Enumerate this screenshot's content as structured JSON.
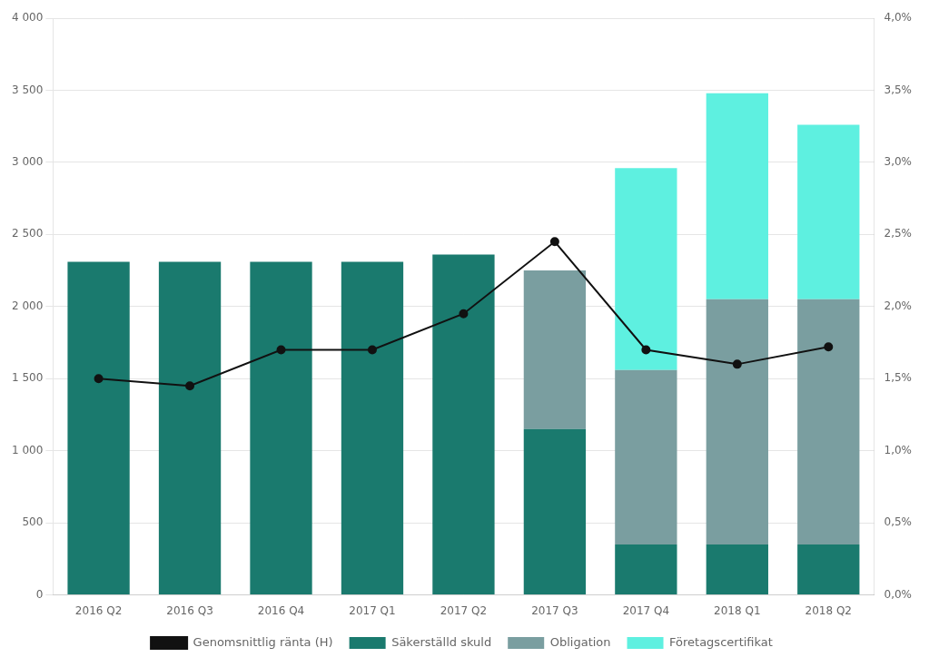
{
  "chart_data": {
    "type": "bar",
    "stacked": true,
    "categories": [
      "2016 Q2",
      "2016 Q3",
      "2016 Q4",
      "2017 Q1",
      "2017 Q2",
      "2017 Q3",
      "2017 Q4",
      "2018 Q1",
      "2018 Q2"
    ],
    "series": [
      {
        "name": "Säkerställd skuld",
        "color": "#1a7a6e",
        "values": [
          2310,
          2310,
          2310,
          2310,
          2360,
          1150,
          350,
          350,
          350
        ]
      },
      {
        "name": "Obligation",
        "color": "#7a9ea0",
        "values": [
          0,
          0,
          0,
          0,
          0,
          1100,
          1210,
          1700,
          1700
        ]
      },
      {
        "name": "Företagscertifikat",
        "color": "#5ef0e0",
        "values": [
          0,
          0,
          0,
          0,
          0,
          0,
          1400,
          1430,
          1210
        ]
      },
      {
        "name": "Genomsnittlig ränta (H)",
        "type": "line",
        "axis": "y2",
        "color": "#111111",
        "marker": "circle",
        "values": [
          1.5,
          1.45,
          1.7,
          1.7,
          1.95,
          2.45,
          1.7,
          1.6,
          1.72
        ]
      }
    ],
    "ylim": [
      0,
      4000
    ],
    "yticks": [
      0,
      500,
      {
        "value": 1000,
        "label": "1 000"
      },
      {
        "value": 1500,
        "label": "1 500"
      },
      {
        "value": 2000,
        "label": "2 000"
      },
      {
        "value": 2500,
        "label": "2 500"
      },
      {
        "value": 3000,
        "label": "3 000"
      },
      {
        "value": 3500,
        "label": "3 500"
      },
      {
        "value": 4000,
        "label": "4 000"
      }
    ],
    "y2lim": [
      0.0,
      4.0
    ],
    "y2ticks": [
      {
        "value": 0.0,
        "label": "0,0%"
      },
      {
        "value": 0.5,
        "label": "0,5%"
      },
      {
        "value": 1.0,
        "label": "1,0%"
      },
      {
        "value": 1.5,
        "label": "1,5%"
      },
      {
        "value": 2.0,
        "label": "2,0%"
      },
      {
        "value": 2.5,
        "label": "2,5%"
      },
      {
        "value": 3.0,
        "label": "3,0%"
      },
      {
        "value": 3.5,
        "label": "3,5%"
      },
      {
        "value": 4.0,
        "label": "4,0%"
      }
    ],
    "grid": true,
    "legend": "bottom"
  }
}
